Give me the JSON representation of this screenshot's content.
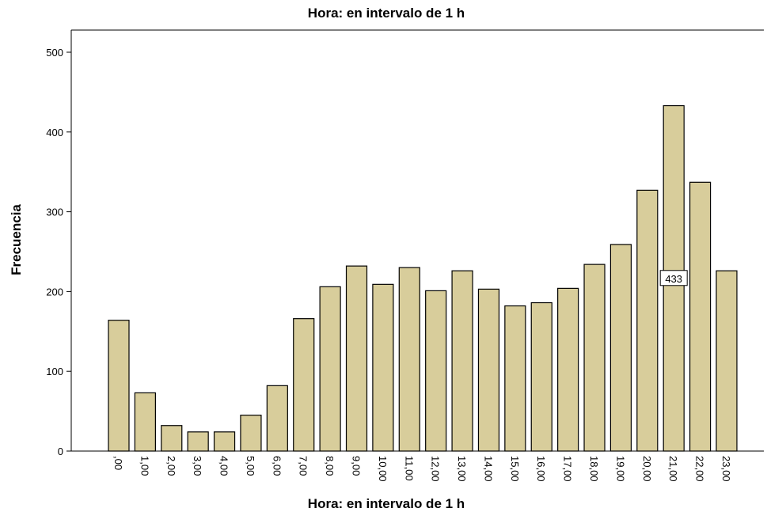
{
  "chart_data": {
    "type": "bar",
    "title": "Hora: en intervalo de 1 h",
    "x_label": "Hora: en intervalo de 1 h",
    "y_label": "Frecuencia",
    "categories": [
      ",00",
      "1,00",
      "2,00",
      "3,00",
      "4,00",
      "5,00",
      "6,00",
      "7,00",
      "8,00",
      "9,00",
      "10,00",
      "11,00",
      "12,00",
      "13,00",
      "14,00",
      "15,00",
      "16,00",
      "17,00",
      "18,00",
      "19,00",
      "20,00",
      "21,00",
      "22,00",
      "23,00"
    ],
    "values": [
      164,
      73,
      32,
      24,
      24,
      45,
      82,
      166,
      206,
      232,
      209,
      230,
      201,
      226,
      203,
      182,
      186,
      204,
      234,
      259,
      327,
      433,
      337,
      226
    ],
    "value_labels": [
      null,
      null,
      null,
      null,
      null,
      null,
      null,
      null,
      null,
      null,
      null,
      null,
      null,
      null,
      null,
      null,
      null,
      null,
      null,
      null,
      null,
      "433",
      null,
      null
    ],
    "color": "#d8cd9b",
    "ylim": [
      0,
      500
    ],
    "yticks": [
      0,
      100,
      200,
      300,
      400,
      500
    ]
  }
}
